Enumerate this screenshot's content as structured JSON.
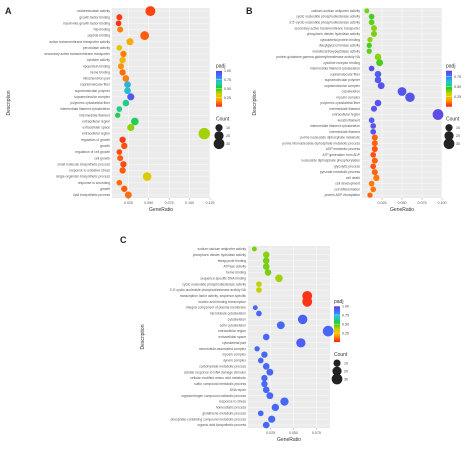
{
  "chart_data": [
    {
      "panel": "A",
      "type": "scatter",
      "xlabel": "GeneRatio",
      "ylabel": "Description",
      "xlim": [
        0.005,
        0.125
      ],
      "xticks": [
        0.025,
        0.05,
        0.075,
        0.1,
        0.125
      ],
      "xtick_labels": [
        "0.025",
        "0.050",
        "0.075",
        "0.100",
        "0.125"
      ],
      "color_legend": {
        "title": "padj",
        "ticks": [
          0.25,
          0.5,
          0.75,
          1.0
        ],
        "tick_labels": [
          "0.25",
          "0.50",
          "0.75",
          "1.00"
        ],
        "colors": [
          "#ff1a1a",
          "#ffa500",
          "#d4d400",
          "#22cc22",
          "#22cccc",
          "#3a7aff",
          "#6a3ae0"
        ],
        "low": 0.0,
        "high": 1.0
      },
      "size_legend": {
        "title": "Count",
        "values": [
          10,
          20,
          30
        ],
        "labels": [
          "10",
          "20",
          "30"
        ]
      },
      "terms": [
        {
          "label": "oxidoreductase activity",
          "x": 0.052,
          "padj": 0.05,
          "count": 25
        },
        {
          "label": "growth factor binding",
          "x": 0.014,
          "padj": 0.04,
          "count": 6
        },
        {
          "label": "insulin-like growth factor binding",
          "x": 0.013,
          "padj": 0.03,
          "count": 5
        },
        {
          "label": "Nip binding",
          "x": 0.015,
          "padj": 0.12,
          "count": 6
        },
        {
          "label": "peptide binding",
          "x": 0.045,
          "padj": 0.08,
          "count": 18
        },
        {
          "label": "active transmembrane transporter activity",
          "x": 0.027,
          "padj": 0.18,
          "count": 10
        },
        {
          "label": "peroxidase activity",
          "x": 0.014,
          "padj": 0.28,
          "count": 5
        },
        {
          "label": "secondary active transmembrane transporter",
          "x": 0.019,
          "padj": 0.12,
          "count": 7
        },
        {
          "label": "cytokine activity",
          "x": 0.018,
          "padj": 0.22,
          "count": 7
        },
        {
          "label": "lipoprotein binding",
          "x": 0.016,
          "padj": 0.14,
          "count": 6
        },
        {
          "label": "heme binding",
          "x": 0.018,
          "padj": 0.1,
          "count": 7
        },
        {
          "label": "mitochondrion part",
          "x": 0.022,
          "padj": 0.12,
          "count": 8
        },
        {
          "label": "supramolecular fiber",
          "x": 0.024,
          "padj": 0.72,
          "count": 8
        },
        {
          "label": "supramolecular polymer",
          "x": 0.024,
          "padj": 0.7,
          "count": 8
        },
        {
          "label": "supramolecular complex",
          "x": 0.028,
          "padj": 0.92,
          "count": 10
        },
        {
          "label": "polymeric cytoskeletal fiber",
          "x": 0.022,
          "padj": 0.6,
          "count": 8
        },
        {
          "label": "intermediate filament cytoskeleton",
          "x": 0.014,
          "padj": 0.6,
          "count": 5
        },
        {
          "label": "intermediate filament",
          "x": 0.012,
          "padj": 0.55,
          "count": 4
        },
        {
          "label": "extracellular region",
          "x": 0.033,
          "padj": 0.55,
          "count": 12
        },
        {
          "label": "extracellular space",
          "x": 0.028,
          "padj": 0.4,
          "count": 10
        },
        {
          "label": "extracellular region",
          "x": 0.118,
          "padj": 0.38,
          "count": 35
        },
        {
          "label": "regulation of growth",
          "x": 0.018,
          "padj": 0.04,
          "count": 7
        },
        {
          "label": "growth",
          "x": 0.02,
          "padj": 0.06,
          "count": 7
        },
        {
          "label": "regulation of cell growth",
          "x": 0.014,
          "padj": 0.06,
          "count": 5
        },
        {
          "label": "cell growth",
          "x": 0.015,
          "padj": 0.08,
          "count": 6
        },
        {
          "label": "small molecule biosynthetic process",
          "x": 0.019,
          "padj": 0.06,
          "count": 7
        },
        {
          "label": "response to oxidative stress",
          "x": 0.018,
          "padj": 0.08,
          "count": 7
        },
        {
          "label": "single-organism biosynthetic process",
          "x": 0.048,
          "padj": 0.3,
          "count": 17
        },
        {
          "label": "response to wounding",
          "x": 0.014,
          "padj": 0.1,
          "count": 5
        },
        {
          "label": "growth",
          "x": 0.02,
          "padj": 0.08,
          "count": 7
        },
        {
          "label": "lipid biosynthetic process",
          "x": 0.025,
          "padj": 0.1,
          "count": 9
        }
      ]
    },
    {
      "panel": "B",
      "type": "scatter",
      "xlabel": "GeneRatio",
      "ylabel": "Description",
      "xlim": [
        0.0,
        0.1
      ],
      "xticks": [
        0.025,
        0.05,
        0.075,
        0.1
      ],
      "xtick_labels": [
        "0.025",
        "0.050",
        "0.075",
        "0.100"
      ],
      "color_legend": {
        "title": "padj",
        "ticks": [
          0.25,
          0.5,
          0.75
        ],
        "tick_labels": [
          "0.25",
          "0.50",
          "0.75"
        ],
        "colors": [
          "#ff1a1a",
          "#ffa500",
          "#d4d400",
          "#22cc22",
          "#22cccc",
          "#3a7aff",
          "#6a3ae0"
        ],
        "low": 0.0,
        "high": 0.9
      },
      "size_legend": {
        "title": "Count",
        "values": [
          10,
          20,
          30
        ],
        "labels": [
          "10",
          "20",
          "30"
        ]
      },
      "terms": [
        {
          "label": "calcium-sodium antiporter activity",
          "x": 0.006,
          "padj": 0.38,
          "count": 3
        },
        {
          "label": "cyclic nucleotide phosphodiesterase activity",
          "x": 0.012,
          "padj": 0.42,
          "count": 5
        },
        {
          "label": "3',5'-cyclic-nucleotide phosphodiesterase activity",
          "x": 0.012,
          "padj": 0.4,
          "count": 5
        },
        {
          "label": "secondary active transmembrane transporter",
          "x": 0.015,
          "padj": 0.36,
          "count": 6
        },
        {
          "label": "phosphoric diester hydrolase activity",
          "x": 0.015,
          "padj": 0.38,
          "count": 6
        },
        {
          "label": "cytoskeletal protein binding",
          "x": 0.01,
          "padj": 0.36,
          "count": 4
        },
        {
          "label": "diacylglycerol kinase activity",
          "x": 0.009,
          "padj": 0.42,
          "count": 4
        },
        {
          "label": "metallocarboxypeptidase activity",
          "x": 0.009,
          "padj": 0.4,
          "count": 4
        },
        {
          "label": "protein-glutamine gamma-glutamyltransferase activity NA",
          "x": 0.02,
          "padj": 0.36,
          "count": 8
        },
        {
          "label": "cytokine receptor binding",
          "x": 0.022,
          "padj": 0.42,
          "count": 9
        },
        {
          "label": "intermediate filament cytoskeleton",
          "x": 0.012,
          "padj": 0.85,
          "count": 5
        },
        {
          "label": "supramolecular fiber",
          "x": 0.02,
          "padj": 0.82,
          "count": 8
        },
        {
          "label": "supramolecular polymer",
          "x": 0.02,
          "padj": 0.82,
          "count": 8
        },
        {
          "label": "supramolecular complex",
          "x": 0.024,
          "padj": 0.84,
          "count": 9
        },
        {
          "label": "cytoskeleton",
          "x": 0.05,
          "padj": 0.84,
          "count": 18
        },
        {
          "label": "myosin complex",
          "x": 0.06,
          "padj": 0.84,
          "count": 22
        },
        {
          "label": "polymeric cytoskeletal fiber",
          "x": 0.02,
          "padj": 0.84,
          "count": 8
        },
        {
          "label": "intermediate filament",
          "x": 0.015,
          "padj": 0.84,
          "count": 6
        },
        {
          "label": "extracellular region",
          "x": 0.095,
          "padj": 0.86,
          "count": 30
        },
        {
          "label": "keratin filament",
          "x": 0.012,
          "padj": 0.82,
          "count": 5
        },
        {
          "label": "intermediate filament cytoskeleton",
          "x": 0.014,
          "padj": 0.84,
          "count": 5
        },
        {
          "label": "intermediate filament",
          "x": 0.014,
          "padj": 0.84,
          "count": 5
        },
        {
          "label": "purine nucleoside diphosphate metabolic",
          "x": 0.016,
          "padj": 0.08,
          "count": 6
        },
        {
          "label": "purine ribonucleoside diphosphate metabolic process",
          "x": 0.016,
          "padj": 0.08,
          "count": 6
        },
        {
          "label": "ADP metabolic process",
          "x": 0.016,
          "padj": 0.06,
          "count": 6
        },
        {
          "label": "ATP generation from ADP",
          "x": 0.014,
          "padj": 0.06,
          "count": 5
        },
        {
          "label": "nucleoside diphosphate phosphorylation",
          "x": 0.016,
          "padj": 0.08,
          "count": 6
        },
        {
          "label": "glycolytic process",
          "x": 0.014,
          "padj": 0.06,
          "count": 5
        },
        {
          "label": "pyruvate metabolic process",
          "x": 0.016,
          "padj": 0.08,
          "count": 6
        },
        {
          "label": "cell death",
          "x": 0.018,
          "padj": 0.1,
          "count": 7
        },
        {
          "label": "cell development",
          "x": 0.012,
          "padj": 0.1,
          "count": 5
        },
        {
          "label": "cell differentiation",
          "x": 0.014,
          "padj": 0.1,
          "count": 5
        },
        {
          "label": "protein ADP-ribosylation",
          "x": 0.01,
          "padj": 0.08,
          "count": 4
        }
      ]
    },
    {
      "panel": "C",
      "type": "scatter",
      "xlabel": "GeneRatio",
      "ylabel": "Description",
      "xlim": [
        0.0,
        0.09
      ],
      "xticks": [
        0.025,
        0.05,
        0.075
      ],
      "xtick_labels": [
        "0.025",
        "0.050",
        "0.075"
      ],
      "color_legend": {
        "title": "padj",
        "ticks": [
          0.25,
          0.5,
          0.75,
          1.0
        ],
        "tick_labels": [
          "0.25",
          "0.50",
          "0.75",
          "1.00"
        ],
        "colors": [
          "#ff1a1a",
          "#ffa500",
          "#d4d400",
          "#22cc22",
          "#22cccc",
          "#3a7aff",
          "#6a3ae0"
        ],
        "low": 0.0,
        "high": 1.0
      },
      "size_legend": {
        "title": "Count",
        "values": [
          10,
          20,
          30
        ],
        "labels": [
          "10",
          "20",
          "30"
        ]
      },
      "terms": [
        {
          "label": "sodium:calcium antiporter activity",
          "x": 0.007,
          "padj": 0.42,
          "count": 3
        },
        {
          "label": "phosphoric diester hydrolase activity",
          "x": 0.02,
          "padj": 0.4,
          "count": 8
        },
        {
          "label": "tetrapyrrole binding",
          "x": 0.02,
          "padj": 0.42,
          "count": 8
        },
        {
          "label": "ATPase activity",
          "x": 0.02,
          "padj": 0.42,
          "count": 8
        },
        {
          "label": "heme binding",
          "x": 0.022,
          "padj": 0.42,
          "count": 8
        },
        {
          "label": "sequence-specific DNA binding",
          "x": 0.034,
          "padj": 0.38,
          "count": 12
        },
        {
          "label": "cyclic nucleotide phosphodiesterase activity",
          "x": 0.012,
          "padj": 0.35,
          "count": 5
        },
        {
          "label": "3',5'-cyclic-nucleotide phosphodiesterase activity NA",
          "x": 0.012,
          "padj": 0.35,
          "count": 5
        },
        {
          "label": "transcription factor activity, sequence-specific",
          "x": 0.065,
          "padj": 0.03,
          "count": 24
        },
        {
          "label": "nucleic acid binding transcription",
          "x": 0.065,
          "padj": 0.03,
          "count": 24
        },
        {
          "label": "integral component of plasma membrane",
          "x": 0.008,
          "padj": 0.88,
          "count": 3
        },
        {
          "label": "microtubule cytoskeleton",
          "x": 0.012,
          "padj": 0.88,
          "count": 5
        },
        {
          "label": "cytoskeleton",
          "x": 0.06,
          "padj": 0.9,
          "count": 22
        },
        {
          "label": "actin cytoskeleton",
          "x": 0.036,
          "padj": 0.88,
          "count": 13
        },
        {
          "label": "extracellular region",
          "x": 0.088,
          "padj": 0.88,
          "count": 30
        },
        {
          "label": "extracellular space",
          "x": 0.02,
          "padj": 0.88,
          "count": 8
        },
        {
          "label": "cytoskeletal part",
          "x": 0.058,
          "padj": 0.9,
          "count": 21
        },
        {
          "label": "microtubule-associated complex",
          "x": 0.01,
          "padj": 0.88,
          "count": 4
        },
        {
          "label": "myosin complex",
          "x": 0.018,
          "padj": 0.88,
          "count": 7
        },
        {
          "label": "dynein complex",
          "x": 0.014,
          "padj": 0.88,
          "count": 5
        },
        {
          "label": "carbohydrate metabolic process",
          "x": 0.02,
          "padj": 0.88,
          "count": 8
        },
        {
          "label": "cellular response to DNA damage stimulus",
          "x": 0.024,
          "padj": 0.88,
          "count": 9
        },
        {
          "label": "cellular modified amino acid metabolic",
          "x": 0.018,
          "padj": 0.88,
          "count": 7
        },
        {
          "label": "sulfur compound metabolic process",
          "x": 0.018,
          "padj": 0.88,
          "count": 7
        },
        {
          "label": "DNA repair",
          "x": 0.02,
          "padj": 0.88,
          "count": 8
        },
        {
          "label": "organonitrogen compound catabolic process",
          "x": 0.024,
          "padj": 0.88,
          "count": 9
        },
        {
          "label": "response to stress",
          "x": 0.04,
          "padj": 0.88,
          "count": 15
        },
        {
          "label": "homeostatic process",
          "x": 0.03,
          "padj": 0.88,
          "count": 11
        },
        {
          "label": "glutathione metabolic process",
          "x": 0.014,
          "padj": 0.88,
          "count": 5
        },
        {
          "label": "phosphate-containing compound metabolic process",
          "x": 0.026,
          "padj": 0.88,
          "count": 10
        },
        {
          "label": "organic acid biosynthetic process",
          "x": 0.02,
          "padj": 0.88,
          "count": 8
        }
      ]
    }
  ]
}
